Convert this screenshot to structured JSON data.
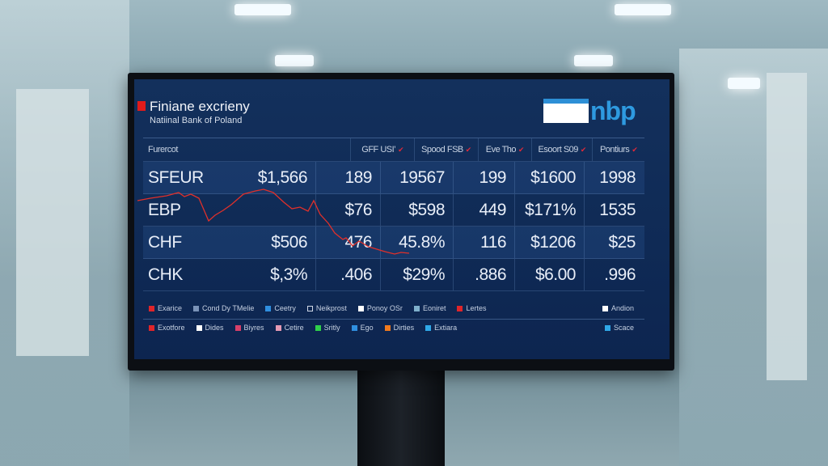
{
  "header": {
    "title": "Finiane excrieny",
    "subtitle": "Natiinal Bank of Poland",
    "logo_text": "nbp"
  },
  "table": {
    "columns": [
      "Furercot",
      "GFF USI’",
      "Spood FSB",
      "Eve Tho",
      "Esoort S09",
      "Pontiurs"
    ],
    "rows": [
      [
        "SFEUR",
        "$1,566",
        "189",
        "19567",
        "199",
        "$1600",
        "1998"
      ],
      [
        "EBP",
        "",
        "$76",
        "$598",
        "449",
        "$171%",
        "1535"
      ],
      [
        "CHF",
        "$506",
        "476",
        "45.8%",
        "116",
        "$1206",
        "$25"
      ],
      [
        "CHK",
        "$,3%",
        ".406",
        "$29%",
        ".886",
        "$6.00",
        ".996"
      ]
    ]
  },
  "legend_row1": [
    {
      "label": "Exarice",
      "color": "#e0252a"
    },
    {
      "label": "Cond Dy TMelie",
      "color": "#7a93b8"
    },
    {
      "label": "Ceetry",
      "color": "#2f8fe0"
    },
    {
      "label": "Neikprost",
      "color": "outline"
    },
    {
      "label": "Ponoy OSr",
      "color": "#ffffff"
    },
    {
      "label": "Eoniret",
      "color": "#7fb0cc"
    },
    {
      "label": "Lertes",
      "color": "#e0252a"
    },
    {
      "label": "Andion",
      "color": "#ffffff"
    }
  ],
  "legend_row2": [
    {
      "label": "Exotfore",
      "color": "#e0252a"
    },
    {
      "label": "Dides",
      "color": "#ffffff"
    },
    {
      "label": "Biyres",
      "color": "#d8406a"
    },
    {
      "label": "Cetire",
      "color": "#e59ab4"
    },
    {
      "label": "Sritly",
      "color": "#2fd04a"
    },
    {
      "label": "Ego",
      "color": "#2f8fe0"
    },
    {
      "label": "Dirties",
      "color": "#f07a1e"
    },
    {
      "label": "Extiara",
      "color": "#2fa8e8"
    },
    {
      "label": "Scace",
      "color": "#2fa8e8"
    }
  ],
  "colors": {
    "screen_bg": "#0f2a55",
    "accent_red": "#e01b1b",
    "logo_blue": "#2e9ae0",
    "trend_line": "#e0302a"
  }
}
